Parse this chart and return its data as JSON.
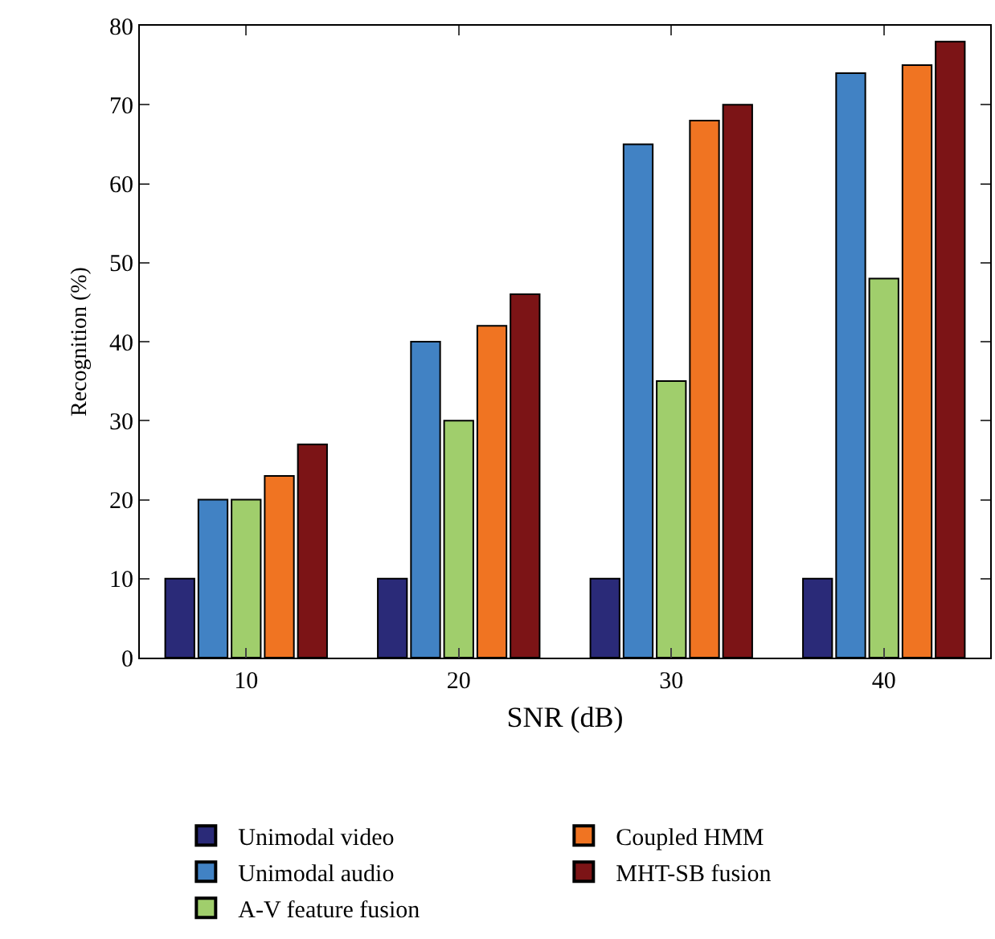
{
  "chart_data": {
    "type": "bar",
    "xlabel": "SNR (dB)",
    "ylabel": "Recognition (%)",
    "categories": [
      "10",
      "20",
      "30",
      "40"
    ],
    "series": [
      {
        "name": "Unimodal video",
        "color": "#2a2a78",
        "values": [
          10,
          10,
          10,
          10
        ]
      },
      {
        "name": "Unimodal audio",
        "color": "#4182c4",
        "values": [
          20,
          40,
          65,
          74
        ]
      },
      {
        "name": "A-V feature fusion",
        "color": "#a0ce6c",
        "values": [
          20,
          30,
          35,
          48
        ]
      },
      {
        "name": "Coupled HMM",
        "color": "#f07422",
        "values": [
          23,
          42,
          68,
          75
        ]
      },
      {
        "name": "MHT-SB fusion",
        "color": "#7c1416",
        "values": [
          27,
          46,
          70,
          78
        ]
      }
    ],
    "ylim": [
      0,
      80
    ],
    "yticks": [
      0,
      10,
      20,
      30,
      40,
      50,
      60,
      70,
      80
    ],
    "legend": "bottom"
  }
}
